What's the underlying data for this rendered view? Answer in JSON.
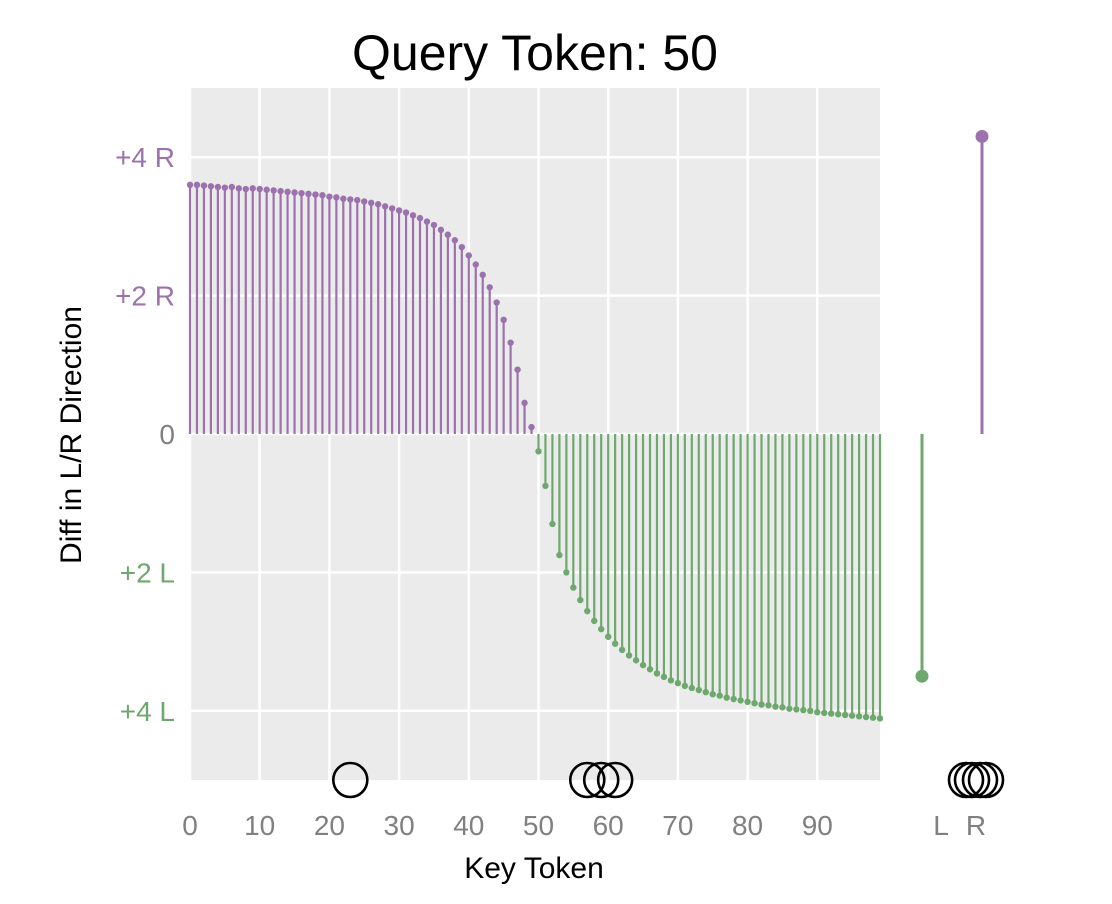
{
  "chart_data": {
    "type": "lollipop",
    "title": "Query Token: 50",
    "xlabel": "Key Token",
    "ylabel": "Diff in L/R Direction",
    "xlim": [
      0,
      99
    ],
    "ylim": [
      -5,
      5
    ],
    "x_ticks": [
      "0",
      "10",
      "20",
      "30",
      "40",
      "50",
      "60",
      "70",
      "80",
      "90"
    ],
    "y_ticks": [
      {
        "value": 4,
        "label": "+4 R",
        "color": "#9B72AD"
      },
      {
        "value": 2,
        "label": "+2 R",
        "color": "#9B72AD"
      },
      {
        "value": 0,
        "label": "0",
        "color": "#808080"
      },
      {
        "value": -2,
        "label": "+2 L",
        "color": "#6FA86F"
      },
      {
        "value": -4,
        "label": "+4 L",
        "color": "#6FA86F"
      }
    ],
    "colors": {
      "R": "#9B72AD",
      "L": "#6FA86F",
      "panel": "#EBEBEB",
      "grid": "#FFFFFF"
    },
    "grid": true,
    "key_tokens": {
      "x": [
        0,
        1,
        2,
        3,
        4,
        5,
        6,
        7,
        8,
        9,
        10,
        11,
        12,
        13,
        14,
        15,
        16,
        17,
        18,
        19,
        20,
        21,
        22,
        23,
        24,
        25,
        26,
        27,
        28,
        29,
        30,
        31,
        32,
        33,
        34,
        35,
        36,
        37,
        38,
        39,
        40,
        41,
        42,
        43,
        44,
        45,
        46,
        47,
        48,
        49,
        50,
        51,
        52,
        53,
        54,
        55,
        56,
        57,
        58,
        59,
        60,
        61,
        62,
        63,
        64,
        65,
        66,
        67,
        68,
        69,
        70,
        71,
        72,
        73,
        74,
        75,
        76,
        77,
        78,
        79,
        80,
        81,
        82,
        83,
        84,
        85,
        86,
        87,
        88,
        89,
        90,
        91,
        92,
        93,
        94,
        95,
        96,
        97,
        98,
        99
      ],
      "y": [
        3.6,
        3.6,
        3.59,
        3.58,
        3.57,
        3.56,
        3.57,
        3.55,
        3.54,
        3.55,
        3.54,
        3.53,
        3.52,
        3.51,
        3.5,
        3.49,
        3.48,
        3.47,
        3.46,
        3.45,
        3.43,
        3.42,
        3.4,
        3.39,
        3.38,
        3.36,
        3.34,
        3.32,
        3.29,
        3.26,
        3.23,
        3.2,
        3.16,
        3.12,
        3.07,
        3.02,
        2.95,
        2.88,
        2.8,
        2.7,
        2.58,
        2.45,
        2.3,
        2.12,
        1.9,
        1.65,
        1.32,
        0.93,
        0.45,
        0.1,
        -0.25,
        -0.75,
        -1.3,
        -1.75,
        -2.0,
        -2.22,
        -2.4,
        -2.56,
        -2.7,
        -2.82,
        -2.93,
        -3.03,
        -3.12,
        -3.2,
        -3.27,
        -3.34,
        -3.4,
        -3.46,
        -3.51,
        -3.56,
        -3.6,
        -3.64,
        -3.67,
        -3.7,
        -3.73,
        -3.76,
        -3.78,
        -3.81,
        -3.83,
        -3.85,
        -3.87,
        -3.89,
        -3.91,
        -3.92,
        -3.94,
        -3.95,
        -3.97,
        -3.98,
        -3.99,
        -4.0,
        -4.02,
        -4.03,
        -4.04,
        -4.05,
        -4.06,
        -4.07,
        -4.08,
        -4.09,
        -4.1,
        -4.11
      ]
    },
    "summary": [
      {
        "label": "L",
        "value": -3.5
      },
      {
        "label": "R",
        "value": 4.3
      }
    ],
    "marker_circles": {
      "main": [
        23,
        57,
        59,
        61
      ],
      "side": [
        "L",
        "L",
        "R",
        "R"
      ]
    }
  }
}
